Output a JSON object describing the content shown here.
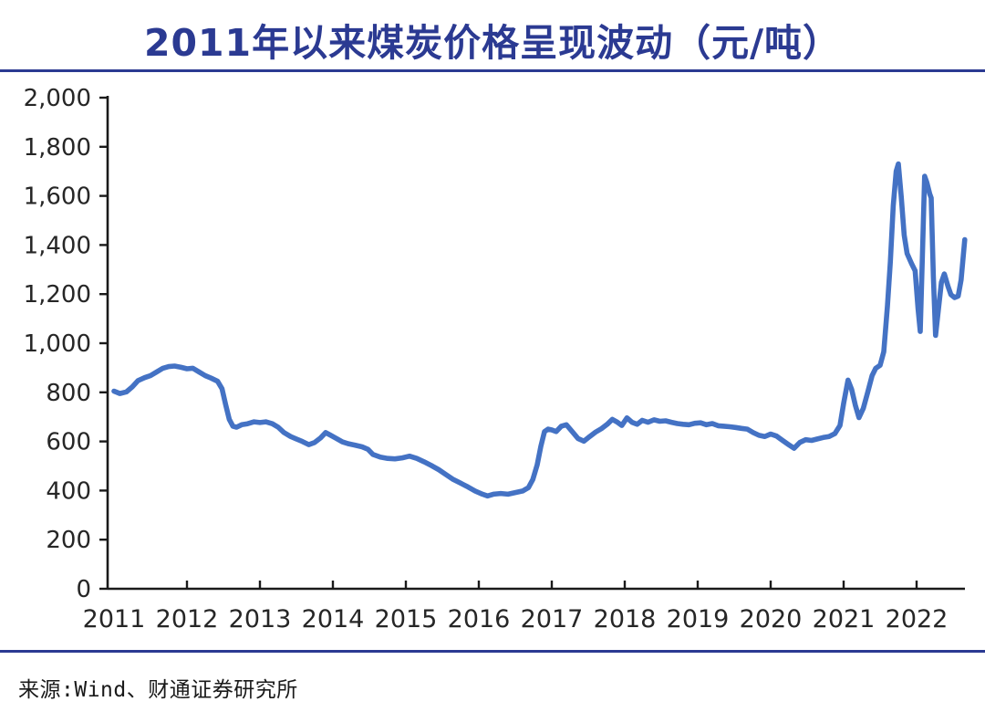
{
  "header": {
    "title": "2011年以来煤炭价格呈现波动（元/吨）",
    "title_color": "#2B3A92",
    "rule_color": "#2B3A92"
  },
  "footer": {
    "source_text": "来源:Wind、财通证券研究所"
  },
  "chart_data": {
    "type": "line",
    "title": "2011年以来煤炭价格呈现波动（元/吨）",
    "ylabel": "",
    "xlabel": "",
    "unit": "元/吨",
    "series_name": "煤炭价格",
    "line_color": "#4472C4",
    "axis_color": "#1a1a1a",
    "tick_label_color": "#262626",
    "grid": false,
    "legend_position": "none",
    "ylim": [
      0,
      2000
    ],
    "y_ticks": [
      0,
      200,
      400,
      600,
      800,
      1000,
      1200,
      1400,
      1600,
      1800,
      2000
    ],
    "y_tick_labels": [
      "0",
      "200",
      "400",
      "600",
      "800",
      "1,000",
      "1,200",
      "1,400",
      "1,600",
      "1,800",
      "2,000"
    ],
    "x_ticks": [
      2011,
      2012,
      2013,
      2014,
      2015,
      2016,
      2017,
      2018,
      2019,
      2020,
      2021,
      2022
    ],
    "x_tick_labels": [
      "2011",
      "2012",
      "2013",
      "2014",
      "2015",
      "2016",
      "2017",
      "2018",
      "2019",
      "2020",
      "2021",
      "2022"
    ],
    "points": [
      [
        2011.0,
        805
      ],
      [
        2011.08,
        795
      ],
      [
        2011.17,
        802
      ],
      [
        2011.25,
        822
      ],
      [
        2011.33,
        848
      ],
      [
        2011.42,
        860
      ],
      [
        2011.5,
        868
      ],
      [
        2011.58,
        882
      ],
      [
        2011.67,
        898
      ],
      [
        2011.75,
        905
      ],
      [
        2011.83,
        907
      ],
      [
        2011.92,
        902
      ],
      [
        2012.0,
        896
      ],
      [
        2012.08,
        898
      ],
      [
        2012.17,
        882
      ],
      [
        2012.25,
        868
      ],
      [
        2012.33,
        858
      ],
      [
        2012.42,
        845
      ],
      [
        2012.48,
        815
      ],
      [
        2012.53,
        750
      ],
      [
        2012.58,
        690
      ],
      [
        2012.63,
        662
      ],
      [
        2012.68,
        658
      ],
      [
        2012.75,
        668
      ],
      [
        2012.83,
        672
      ],
      [
        2012.92,
        680
      ],
      [
        2013.0,
        677
      ],
      [
        2013.08,
        680
      ],
      [
        2013.17,
        672
      ],
      [
        2013.25,
        658
      ],
      [
        2013.33,
        636
      ],
      [
        2013.42,
        620
      ],
      [
        2013.5,
        610
      ],
      [
        2013.58,
        600
      ],
      [
        2013.67,
        587
      ],
      [
        2013.75,
        596
      ],
      [
        2013.83,
        614
      ],
      [
        2013.9,
        636
      ],
      [
        2013.97,
        625
      ],
      [
        2014.05,
        612
      ],
      [
        2014.13,
        598
      ],
      [
        2014.22,
        590
      ],
      [
        2014.3,
        585
      ],
      [
        2014.4,
        578
      ],
      [
        2014.48,
        568
      ],
      [
        2014.55,
        547
      ],
      [
        2014.65,
        536
      ],
      [
        2014.75,
        531
      ],
      [
        2014.85,
        529
      ],
      [
        2014.95,
        533
      ],
      [
        2015.05,
        540
      ],
      [
        2015.15,
        531
      ],
      [
        2015.25,
        517
      ],
      [
        2015.35,
        502
      ],
      [
        2015.45,
        485
      ],
      [
        2015.55,
        465
      ],
      [
        2015.65,
        445
      ],
      [
        2015.75,
        430
      ],
      [
        2015.85,
        415
      ],
      [
        2015.95,
        398
      ],
      [
        2016.05,
        385
      ],
      [
        2016.12,
        378
      ],
      [
        2016.2,
        385
      ],
      [
        2016.3,
        388
      ],
      [
        2016.4,
        385
      ],
      [
        2016.5,
        392
      ],
      [
        2016.6,
        398
      ],
      [
        2016.68,
        412
      ],
      [
        2016.74,
        445
      ],
      [
        2016.8,
        505
      ],
      [
        2016.85,
        580
      ],
      [
        2016.9,
        640
      ],
      [
        2016.95,
        650
      ],
      [
        2017.0,
        647
      ],
      [
        2017.06,
        640
      ],
      [
        2017.13,
        662
      ],
      [
        2017.2,
        668
      ],
      [
        2017.28,
        640
      ],
      [
        2017.36,
        612
      ],
      [
        2017.44,
        601
      ],
      [
        2017.52,
        620
      ],
      [
        2017.6,
        638
      ],
      [
        2017.68,
        652
      ],
      [
        2017.76,
        670
      ],
      [
        2017.83,
        690
      ],
      [
        2017.9,
        678
      ],
      [
        2017.96,
        665
      ],
      [
        2018.03,
        696
      ],
      [
        2018.1,
        678
      ],
      [
        2018.17,
        670
      ],
      [
        2018.24,
        686
      ],
      [
        2018.32,
        678
      ],
      [
        2018.4,
        688
      ],
      [
        2018.48,
        682
      ],
      [
        2018.56,
        684
      ],
      [
        2018.64,
        678
      ],
      [
        2018.72,
        673
      ],
      [
        2018.8,
        670
      ],
      [
        2018.88,
        668
      ],
      [
        2018.96,
        674
      ],
      [
        2019.04,
        676
      ],
      [
        2019.12,
        668
      ],
      [
        2019.2,
        673
      ],
      [
        2019.28,
        664
      ],
      [
        2019.36,
        662
      ],
      [
        2019.44,
        660
      ],
      [
        2019.52,
        657
      ],
      [
        2019.6,
        653
      ],
      [
        2019.68,
        650
      ],
      [
        2019.76,
        636
      ],
      [
        2019.84,
        625
      ],
      [
        2019.92,
        620
      ],
      [
        2020.0,
        630
      ],
      [
        2020.08,
        622
      ],
      [
        2020.16,
        605
      ],
      [
        2020.24,
        588
      ],
      [
        2020.32,
        572
      ],
      [
        2020.4,
        596
      ],
      [
        2020.48,
        607
      ],
      [
        2020.56,
        604
      ],
      [
        2020.64,
        610
      ],
      [
        2020.72,
        616
      ],
      [
        2020.8,
        620
      ],
      [
        2020.88,
        632
      ],
      [
        2020.95,
        665
      ],
      [
        2021.0,
        755
      ],
      [
        2021.06,
        850
      ],
      [
        2021.11,
        812
      ],
      [
        2021.16,
        748
      ],
      [
        2021.21,
        697
      ],
      [
        2021.27,
        735
      ],
      [
        2021.33,
        800
      ],
      [
        2021.39,
        868
      ],
      [
        2021.44,
        898
      ],
      [
        2021.5,
        910
      ],
      [
        2021.55,
        965
      ],
      [
        2021.6,
        1150
      ],
      [
        2021.64,
        1330
      ],
      [
        2021.68,
        1560
      ],
      [
        2021.72,
        1700
      ],
      [
        2021.75,
        1730
      ],
      [
        2021.79,
        1595
      ],
      [
        2021.83,
        1440
      ],
      [
        2021.87,
        1365
      ],
      [
        2021.93,
        1325
      ],
      [
        2021.98,
        1295
      ],
      [
        2022.02,
        1140
      ],
      [
        2022.05,
        1048
      ],
      [
        2022.08,
        1360
      ],
      [
        2022.11,
        1680
      ],
      [
        2022.14,
        1655
      ],
      [
        2022.18,
        1608
      ],
      [
        2022.2,
        1592
      ],
      [
        2022.23,
        1270
      ],
      [
        2022.26,
        1032
      ],
      [
        2022.3,
        1140
      ],
      [
        2022.34,
        1248
      ],
      [
        2022.38,
        1282
      ],
      [
        2022.43,
        1232
      ],
      [
        2022.47,
        1198
      ],
      [
        2022.52,
        1186
      ],
      [
        2022.57,
        1192
      ],
      [
        2022.61,
        1258
      ],
      [
        2022.66,
        1422
      ]
    ]
  }
}
